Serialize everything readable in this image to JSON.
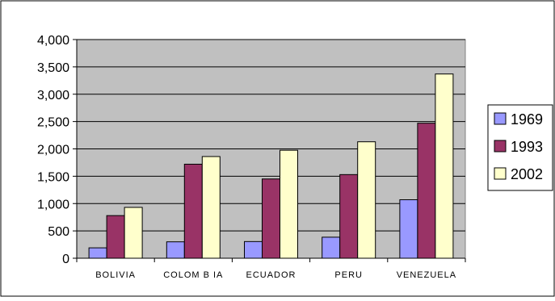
{
  "chart_data": {
    "type": "bar",
    "title": "",
    "xlabel": "",
    "ylabel": "",
    "categories": [
      "BOLIVIA",
      "COLOM B IA",
      "ECUADOR",
      "PERU",
      "VENEZUELA"
    ],
    "series": [
      {
        "name": "1969",
        "values": [
          190,
          300,
          305,
          385,
          1070
        ],
        "color": "#9999ff"
      },
      {
        "name": "1993",
        "values": [
          780,
          1720,
          1450,
          1530,
          2470
        ],
        "color": "#993366"
      },
      {
        "name": "2002",
        "values": [
          930,
          1860,
          1975,
          2130,
          3370
        ],
        "color": "#ffffcc"
      }
    ],
    "ylim": [
      0,
      4000
    ],
    "yticks": [
      0,
      500,
      1000,
      1500,
      2000,
      2500,
      3000,
      3500,
      4000
    ],
    "ytick_labels": [
      "0",
      "500",
      "1,000",
      "1,500",
      "2,000",
      "2,500",
      "3,000",
      "3,500",
      "4,000"
    ],
    "grid": true,
    "plot_background": "#c0c0c0",
    "legend_position": "right"
  }
}
